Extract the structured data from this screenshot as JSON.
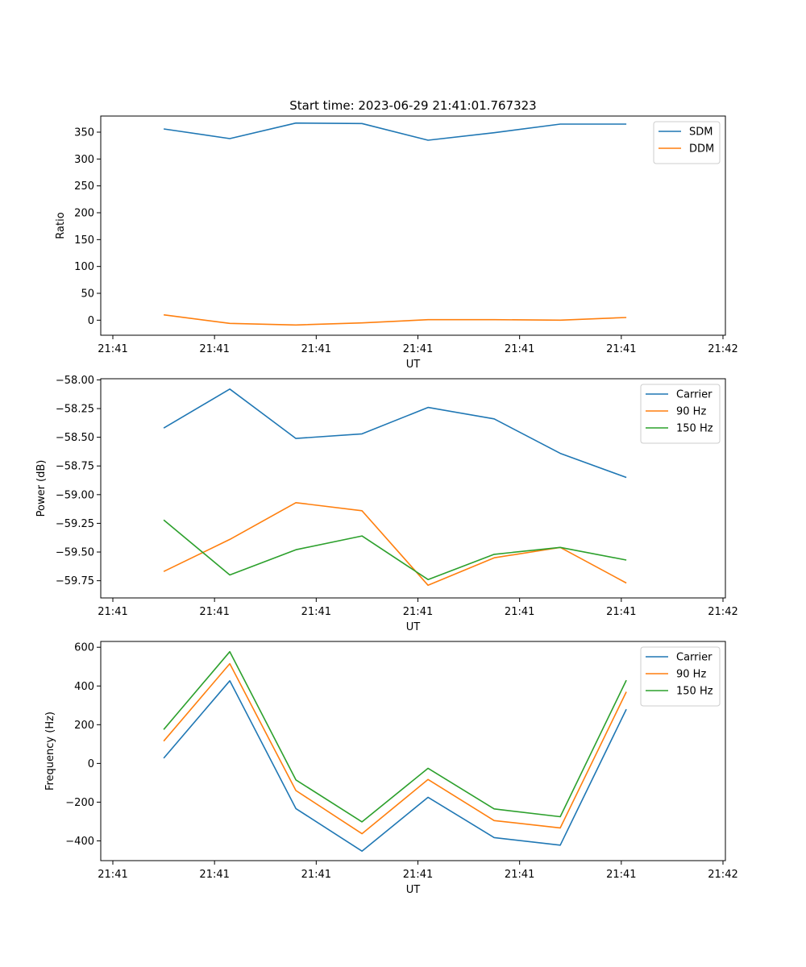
{
  "chart_data": [
    {
      "type": "line",
      "title": "Start time: 2023-06-29 21:41:01.767323",
      "xlabel": "UT",
      "ylabel": "Ratio",
      "x": [
        0.5,
        1.15,
        1.8,
        2.45,
        3.1,
        3.75,
        4.4,
        5.05
      ],
      "xlim": [
        0,
        6
      ],
      "xticks": [
        0,
        1,
        2,
        3,
        4,
        5,
        6
      ],
      "xtick_labels": [
        "21:41",
        "21:41",
        "21:41",
        "21:41",
        "21:41",
        "21:41",
        "21:41"
      ],
      "xtick_labels_right": [
        "21:42"
      ],
      "ylim": [
        -28,
        380
      ],
      "yticks": [
        0,
        50,
        100,
        150,
        200,
        250,
        300,
        350
      ],
      "ytick_labels": [
        "0",
        "50",
        "100",
        "150",
        "200",
        "250",
        "300",
        "350"
      ],
      "legend": "top-right",
      "series": [
        {
          "name": "SDM",
          "color": "#1f77b4",
          "values": [
            356,
            338,
            367,
            366,
            335,
            349,
            365,
            365
          ]
        },
        {
          "name": "DDM",
          "color": "#ff7f0e",
          "values": [
            10,
            -6,
            -9,
            -5,
            1,
            1,
            0,
            5
          ]
        }
      ]
    },
    {
      "type": "line",
      "xlabel": "UT",
      "ylabel": "Power (dB)",
      "x": [
        0.5,
        1.15,
        1.8,
        2.45,
        3.1,
        3.75,
        4.4,
        5.05
      ],
      "xlim": [
        0,
        6
      ],
      "xticks": [
        0,
        1,
        2,
        3,
        4,
        5,
        6
      ],
      "xtick_labels": [
        "21:41",
        "21:41",
        "21:41",
        "21:41",
        "21:41",
        "21:41",
        "21:41"
      ],
      "xtick_labels_right": [
        "21:42"
      ],
      "ylim": [
        -59.9,
        -57.99
      ],
      "yticks": [
        -59.75,
        -59.5,
        -59.25,
        -59.0,
        -58.75,
        -58.5,
        -58.25,
        -58.0
      ],
      "ytick_labels": [
        "−59.75",
        "−59.50",
        "−59.25",
        "−59.00",
        "−58.75",
        "−58.50",
        "−58.25",
        "−58.00"
      ],
      "legend": "top-right",
      "series": [
        {
          "name": "Carrier",
          "color": "#1f77b4",
          "values": [
            -58.42,
            -58.08,
            -58.51,
            -58.47,
            -58.24,
            -58.34,
            -58.64,
            -58.85
          ]
        },
        {
          "name": "90 Hz",
          "color": "#ff7f0e",
          "values": [
            -59.67,
            -59.39,
            -59.07,
            -59.14,
            -59.79,
            -59.55,
            -59.46,
            -59.77
          ]
        },
        {
          "name": "150 Hz",
          "color": "#2ca02c",
          "values": [
            -59.22,
            -59.7,
            -59.48,
            -59.36,
            -59.74,
            -59.52,
            -59.46,
            -59.57
          ]
        }
      ]
    },
    {
      "type": "line",
      "xlabel": "UT",
      "ylabel": "Frequency (Hz)",
      "x": [
        0.5,
        1.15,
        1.8,
        2.45,
        3.1,
        3.75,
        4.4,
        5.05
      ],
      "xlim": [
        0,
        6
      ],
      "xticks": [
        0,
        1,
        2,
        3,
        4,
        5,
        6
      ],
      "xtick_labels": [
        "21:41",
        "21:41",
        "21:41",
        "21:41",
        "21:41",
        "21:41",
        "21:41"
      ],
      "xtick_labels_right": [
        "21:42"
      ],
      "ylim": [
        -502,
        630
      ],
      "yticks": [
        -400,
        -200,
        0,
        200,
        400,
        600
      ],
      "ytick_labels": [
        "−400",
        "−200",
        "0",
        "200",
        "400",
        "600"
      ],
      "legend": "top-right",
      "series": [
        {
          "name": "Carrier",
          "color": "#1f77b4",
          "values": [
            27,
            427,
            -233,
            -453,
            -175,
            -383,
            -422,
            280
          ]
        },
        {
          "name": "90 Hz",
          "color": "#ff7f0e",
          "values": [
            115,
            515,
            -140,
            -363,
            -83,
            -295,
            -333,
            370
          ]
        },
        {
          "name": "150 Hz",
          "color": "#2ca02c",
          "values": [
            175,
            577,
            -85,
            -302,
            -25,
            -235,
            -275,
            430
          ]
        }
      ]
    }
  ]
}
